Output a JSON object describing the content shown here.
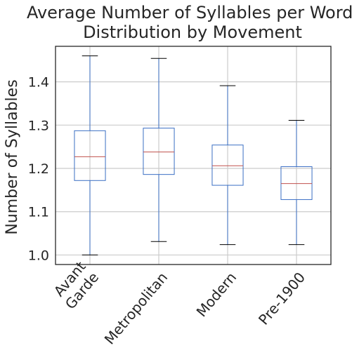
{
  "chart_data": {
    "type": "box",
    "title_lines": [
      "Average Number of Syllables per Word,",
      "Distribution by Movement"
    ],
    "xlabel": "",
    "ylabel": "Number of Syllables",
    "ylim": [
      0.978,
      1.482
    ],
    "yticks": [
      1.0,
      1.1,
      1.2,
      1.3,
      1.4
    ],
    "ytick_labels": [
      "1.0",
      "1.1",
      "1.2",
      "1.3",
      "1.4"
    ],
    "grid": true,
    "categories": [
      {
        "name": "Avant Garde",
        "label_lines": [
          "Avant",
          "Garde"
        ],
        "whisker_low": 1.0,
        "q1": 1.172,
        "median": 1.227,
        "q3": 1.287,
        "whisker_high": 1.46
      },
      {
        "name": "Metropolitan",
        "label_lines": [
          "Metropolitan"
        ],
        "whisker_low": 1.031,
        "q1": 1.186,
        "median": 1.238,
        "q3": 1.293,
        "whisker_high": 1.454
      },
      {
        "name": "Modern",
        "label_lines": [
          "Modern"
        ],
        "whisker_low": 1.024,
        "q1": 1.161,
        "median": 1.206,
        "q3": 1.254,
        "whisker_high": 1.391
      },
      {
        "name": "Pre-1900",
        "label_lines": [
          "Pre-1900"
        ],
        "whisker_low": 1.024,
        "q1": 1.128,
        "median": 1.165,
        "q3": 1.204,
        "whisker_high": 1.311
      }
    ],
    "colors": {
      "box": "#3b6fc4",
      "whisker": "#3b6fc4",
      "median": "#c0504d",
      "cap": "#000000",
      "grid": "#cccccc",
      "frame": "#262626"
    }
  }
}
